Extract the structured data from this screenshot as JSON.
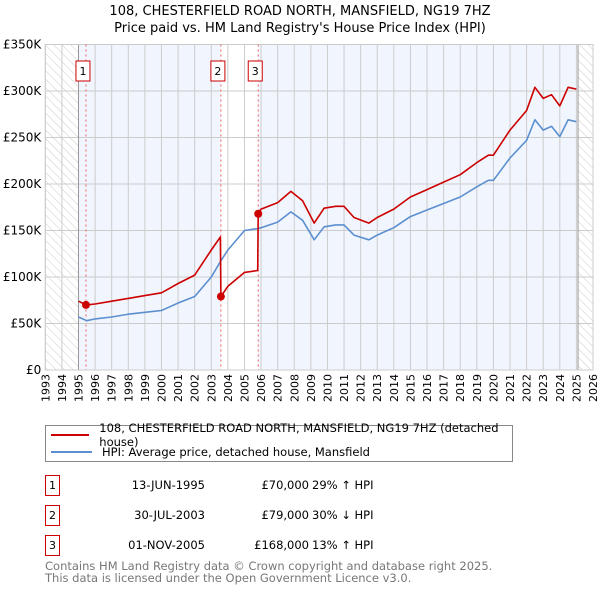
{
  "title_line1": "108, CHESTERFIELD ROAD NORTH, MANSFIELD, NG19 7HZ",
  "title_line2": "Price paid vs. HM Land Registry's House Price Index (HPI)",
  "chart_data": {
    "type": "line",
    "title": "108, CHESTERFIELD ROAD NORTH, MANSFIELD, NG19 7HZ — Price paid vs. HM Land Registry's House Price Index (HPI)",
    "xlim": [
      1993,
      2026
    ],
    "ylim": [
      0,
      350000
    ],
    "x_ticks": [
      1993,
      1994,
      1995,
      1996,
      1997,
      1998,
      1999,
      2000,
      2001,
      2002,
      2003,
      2004,
      2005,
      2006,
      2007,
      2008,
      2009,
      2010,
      2011,
      2012,
      2013,
      2014,
      2015,
      2016,
      2017,
      2018,
      2019,
      2020,
      2021,
      2022,
      2023,
      2024,
      2025,
      2026
    ],
    "y_ticks": [
      0,
      50000,
      100000,
      150000,
      200000,
      250000,
      300000,
      350000
    ],
    "y_tick_labels": [
      "£0",
      "£50K",
      "£100K",
      "£150K",
      "£200K",
      "£250K",
      "£300K",
      "£350K"
    ],
    "grid": true,
    "data_range": [
      1995,
      2025.1
    ],
    "series": [
      {
        "name": "108, CHESTERFIELD ROAD NORTH, MANSFIELD, NG19 7HZ (detached house)",
        "color": "#cc0000",
        "x": [
          1995.0,
          1995.45,
          1996,
          1997,
          1998,
          1999,
          2000,
          2000.5,
          2001,
          2002,
          2003,
          2003.55,
          2003.58,
          2004,
          2005,
          2005.8,
          2005.83,
          2006,
          2007,
          2007.8,
          2008.5,
          2009.2,
          2009.8,
          2010.5,
          2011,
          2011.6,
          2012.5,
          2013,
          2014,
          2015,
          2016,
          2017,
          2018,
          2019,
          2019.7,
          2020,
          2021,
          2022,
          2022.5,
          2023,
          2023.5,
          2024,
          2024.5,
          2025
        ],
        "y": [
          74000,
          70000,
          71000,
          74000,
          77000,
          80000,
          83000,
          88000,
          93000,
          102000,
          129000,
          143000,
          79000,
          90000,
          105000,
          107000,
          168000,
          173000,
          180000,
          192000,
          182000,
          158000,
          174000,
          176000,
          176000,
          164000,
          158000,
          164000,
          173000,
          186000,
          194000,
          202000,
          210000,
          223000,
          231000,
          231000,
          258000,
          279000,
          304000,
          292000,
          296000,
          284000,
          304000,
          302000
        ]
      },
      {
        "name": "HPI: Average price, detached house, Mansfield",
        "color": "#5b8fd0",
        "x": [
          1995.0,
          1995.5,
          1996,
          1997,
          1998,
          1999,
          2000,
          2000.5,
          2001,
          2002,
          2003,
          2003.6,
          2004,
          2005,
          2005.8,
          2006,
          2007,
          2007.8,
          2008.5,
          2009.2,
          2009.8,
          2010.5,
          2011,
          2011.6,
          2012.5,
          2013,
          2014,
          2015,
          2016,
          2017,
          2018,
          2019,
          2019.7,
          2020,
          2021,
          2022,
          2022.5,
          2023,
          2023.5,
          2024,
          2024.5,
          2025
        ],
        "y": [
          57000,
          53000,
          55000,
          57000,
          60000,
          62000,
          64000,
          68000,
          72000,
          79000,
          100000,
          118000,
          129000,
          150000,
          152000,
          153000,
          159000,
          170000,
          161000,
          140000,
          154000,
          156000,
          156000,
          145000,
          140000,
          145000,
          153000,
          165000,
          172000,
          179000,
          186000,
          197000,
          204000,
          204000,
          228000,
          247000,
          269000,
          258000,
          262000,
          251000,
          269000,
          267000
        ]
      }
    ],
    "sales": [
      {
        "label": "1",
        "x": 1995.45,
        "y": 70000
      },
      {
        "label": "2",
        "x": 2003.58,
        "y": 79000
      },
      {
        "label": "3",
        "x": 2005.83,
        "y": 168000
      }
    ]
  },
  "legend": {
    "property": "108, CHESTERFIELD ROAD NORTH, MANSFIELD, NG19 7HZ (detached house)",
    "hpi": "HPI: Average price, detached house, Mansfield"
  },
  "transactions": [
    {
      "num": "1",
      "date": "13-JUN-1995",
      "price": "£70,000",
      "hpi": "29% ↑ HPI"
    },
    {
      "num": "2",
      "date": "30-JUL-2003",
      "price": "£79,000",
      "hpi": "30% ↓ HPI"
    },
    {
      "num": "3",
      "date": "01-NOV-2005",
      "price": "£168,000",
      "hpi": "13% ↑ HPI"
    }
  ],
  "footer": {
    "line1": "Contains HM Land Registry data © Crown copyright and database right 2025.",
    "line2": "This data is licensed under the Open Government Licence v3.0."
  }
}
